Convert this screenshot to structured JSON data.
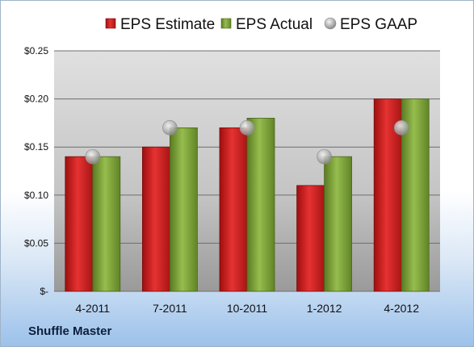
{
  "company": "Shuffle Master",
  "chart_data": {
    "type": "bar",
    "categories": [
      "4-2011",
      "7-2011",
      "10-2011",
      "1-2012",
      "4-2012"
    ],
    "series": [
      {
        "name": "EPS Estimate",
        "type": "bar",
        "color": "#cc1d1d",
        "values": [
          0.14,
          0.15,
          0.17,
          0.11,
          0.2
        ]
      },
      {
        "name": "EPS Actual",
        "type": "bar",
        "color": "#7fa23a",
        "values": [
          0.14,
          0.17,
          0.18,
          0.14,
          0.2
        ]
      },
      {
        "name": "EPS GAAP",
        "type": "marker",
        "color": "#b8b8b8",
        "values": [
          0.14,
          0.17,
          0.17,
          0.14,
          0.17
        ]
      }
    ],
    "ylim": [
      0,
      0.25
    ],
    "yticks": [
      0,
      0.05,
      0.1,
      0.15,
      0.2,
      0.25
    ],
    "ytick_labels": [
      "$-",
      "$0.05",
      "$0.10",
      "$0.15",
      "$0.20",
      "$0.25"
    ],
    "legend_position": "top",
    "grid": true
  }
}
